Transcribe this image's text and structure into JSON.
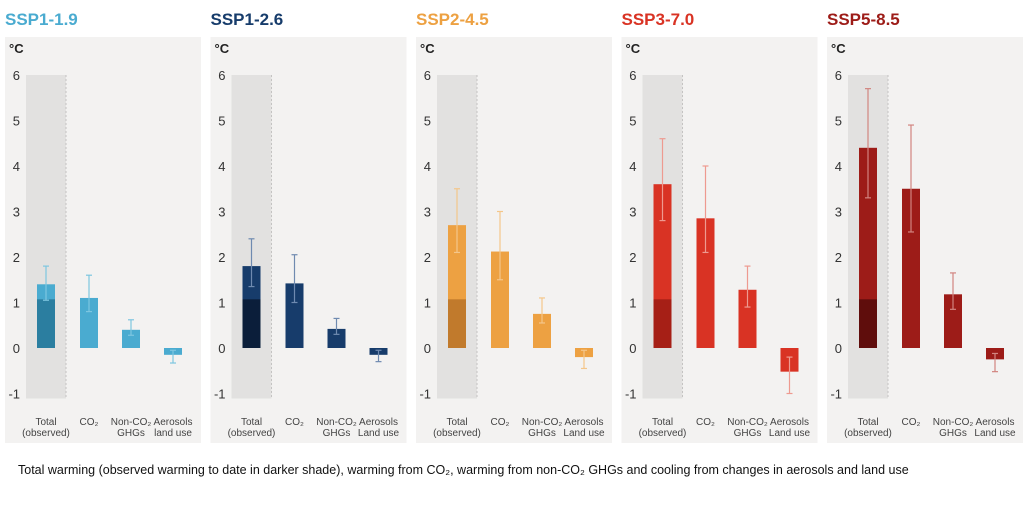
{
  "caption": "Total warming (observed warming to date in darker shade), warming from CO₂, warming from non-CO₂ GHGs and cooling from changes in aerosols and land use",
  "chart_data": [
    {
      "type": "bar",
      "title": "SSP1-1.9",
      "ylabel": "°C",
      "ylim": [
        -1,
        6
      ],
      "yticks": [
        6,
        5,
        4,
        3,
        2,
        1,
        0,
        -1
      ],
      "categories": [
        "Total (observed)",
        "CO₂",
        "Non-CO₂ GHGs",
        "Aerosols land use"
      ],
      "values": [
        1.4,
        1.1,
        0.4,
        -0.15
      ],
      "observed": 1.07,
      "error_low": [
        1.05,
        0.8,
        0.28,
        -0.33
      ],
      "error_high": [
        1.8,
        1.6,
        0.62,
        -0.05
      ],
      "colors": {
        "main": "#4aabd0",
        "dark": "#2b7ea0",
        "err": "#7dc6e0",
        "title": "#4aabd0"
      }
    },
    {
      "type": "bar",
      "title": "SSP1-2.6",
      "ylabel": "°C",
      "ylim": [
        -1,
        6
      ],
      "yticks": [
        6,
        5,
        4,
        3,
        2,
        1,
        0,
        -1
      ],
      "categories": [
        "Total (observed)",
        "CO₂",
        "Non-CO₂ GHGs",
        "Land use Aerosols"
      ],
      "values": [
        1.8,
        1.42,
        0.42,
        -0.15
      ],
      "observed": 1.07,
      "error_low": [
        1.35,
        1.0,
        0.3,
        -0.3
      ],
      "error_high": [
        2.4,
        2.05,
        0.65,
        -0.05
      ],
      "colors": {
        "main": "#173c6b",
        "dark": "#0b1e3a",
        "err": "#6f8ab0",
        "title": "#173c6b"
      }
    },
    {
      "type": "bar",
      "title": "SSP2-4.5",
      "ylabel": "°C",
      "ylim": [
        -1,
        6
      ],
      "yticks": [
        6,
        5,
        4,
        3,
        2,
        1,
        0,
        -1
      ],
      "categories": [
        "Total (observed)",
        "CO₂",
        "Non-CO₂ GHGs",
        "Land use Aerosols"
      ],
      "values": [
        2.7,
        2.12,
        0.75,
        -0.2
      ],
      "observed": 1.07,
      "error_low": [
        2.1,
        1.5,
        0.55,
        -0.45
      ],
      "error_high": [
        3.5,
        3.0,
        1.1,
        -0.05
      ],
      "colors": {
        "main": "#eda142",
        "dark": "#c17a2c",
        "err": "#f4c68a",
        "title": "#eda142"
      }
    },
    {
      "type": "bar",
      "title": "SSP3-7.0",
      "ylabel": "°C",
      "ylim": [
        -1,
        6
      ],
      "yticks": [
        6,
        5,
        4,
        3,
        2,
        1,
        0,
        -1
      ],
      "categories": [
        "Total (observed)",
        "CO₂",
        "Non-CO₂ GHGs",
        "Land use Aerosols"
      ],
      "values": [
        3.6,
        2.85,
        1.28,
        -0.52
      ],
      "observed": 1.07,
      "error_low": [
        2.8,
        2.1,
        0.9,
        -1.0
      ],
      "error_high": [
        4.6,
        4.0,
        1.8,
        -0.2
      ],
      "colors": {
        "main": "#d93324",
        "dark": "#a61f16",
        "err": "#ee9a90",
        "title": "#d93324"
      }
    },
    {
      "type": "bar",
      "title": "SSP5-8.5",
      "ylabel": "°C",
      "ylim": [
        -1,
        6
      ],
      "yticks": [
        6,
        5,
        4,
        3,
        2,
        1,
        0,
        -1
      ],
      "categories": [
        "Total (observed)",
        "CO₂",
        "Non-CO₂ GHGs",
        "Land use Aerosols"
      ],
      "values": [
        4.4,
        3.5,
        1.18,
        -0.25
      ],
      "observed": 1.07,
      "error_low": [
        3.3,
        2.55,
        0.85,
        -0.52
      ],
      "error_high": [
        5.7,
        4.9,
        1.65,
        -0.12
      ],
      "colors": {
        "main": "#9d1c18",
        "dark": "#5f0d0c",
        "err": "#d28580",
        "title": "#9d1c18"
      }
    }
  ]
}
